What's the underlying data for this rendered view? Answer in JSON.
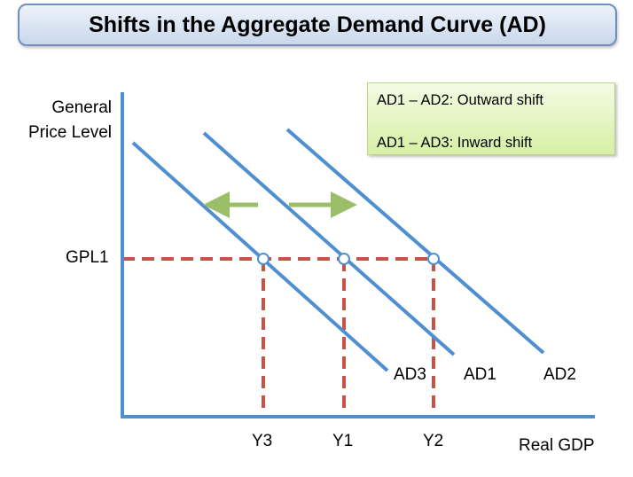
{
  "title": "Shifts in the Aggregate Demand Curve (AD)",
  "legend": {
    "line1": "AD1 – AD2: Outward shift",
    "line2": "AD1 – AD3: Inward shift"
  },
  "axes": {
    "ylabel_line1": "General",
    "ylabel_line2": "Price Level",
    "xlabel": "Real GDP"
  },
  "price_level_label": "GPL1",
  "curves": [
    {
      "name": "AD3",
      "label": "AD3"
    },
    {
      "name": "AD1",
      "label": "AD1"
    },
    {
      "name": "AD2",
      "label": "AD2"
    }
  ],
  "output_labels": {
    "y3": "Y3",
    "y1": "Y1",
    "y2": "Y2"
  },
  "colors": {
    "curve": "#4f8fd0",
    "dashed": "#c8524a",
    "arrow": "#9bbf68",
    "axis": "#4f8fd0"
  }
}
